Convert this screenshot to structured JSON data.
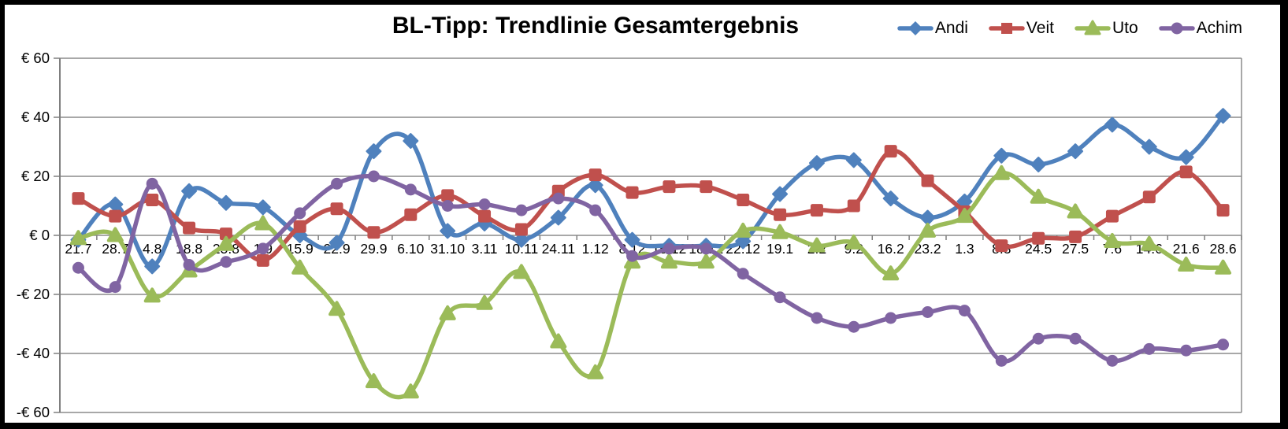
{
  "title": "BL-Tipp: Trendlinie Gesamtergebnis",
  "chart_data": {
    "type": "line",
    "smooth": true,
    "title": "BL-Tipp: Trendlinie Gesamtergebnis",
    "categories": [
      "21.7",
      "28.7",
      "4.8",
      "18.8",
      "25.8",
      "1.9",
      "15.9",
      "22.9",
      "29.9",
      "6.10",
      "31.10",
      "3.11",
      "10.11",
      "24.11",
      "1.12",
      "8.12",
      "15.12",
      "18.12",
      "22.12",
      "19.1",
      "2.2",
      "9.2",
      "16.2",
      "23.2",
      "1.3",
      "8.3",
      "24.5",
      "27.5",
      "7.6",
      "14.6",
      "21.6",
      "28.6"
    ],
    "series": [
      {
        "name": "Andi",
        "color": "#4F81BD",
        "marker": "diamond",
        "values": [
          -1.5,
          10.5,
          -10.5,
          15,
          11,
          9.5,
          0,
          -2.5,
          28.5,
          32,
          1.5,
          4,
          -1.5,
          6,
          17,
          -1.5,
          -3.5,
          -3.5,
          -2,
          14,
          24.5,
          25.5,
          12.5,
          6,
          11.5,
          27,
          24,
          28.5,
          37.5,
          30,
          26.5,
          40.5
        ]
      },
      {
        "name": "Veit",
        "color": "#C0504D",
        "marker": "square",
        "values": [
          12.5,
          6.5,
          12,
          2.5,
          0.5,
          -8.5,
          3,
          9,
          1,
          7,
          13.5,
          6.5,
          2,
          15,
          20.5,
          14.5,
          16.5,
          16.5,
          12,
          7,
          8.5,
          10,
          28.5,
          18.5,
          8,
          -3.5,
          -1,
          -0.5,
          6.5,
          13,
          21.5,
          8.5
        ]
      },
      {
        "name": "Uto",
        "color": "#9BBB59",
        "marker": "triangle",
        "values": [
          -1,
          0,
          -20.5,
          -12,
          -3,
          4,
          -11,
          -25,
          -49.5,
          -53,
          -26.5,
          -23,
          -12.5,
          -36,
          -46.5,
          -9,
          -9,
          -9,
          1.5,
          1,
          -3.5,
          -2.5,
          -13,
          1.5,
          6.5,
          21,
          13,
          8,
          -2,
          -3,
          -10,
          -11
        ]
      },
      {
        "name": "Achim",
        "color": "#8064A2",
        "marker": "circle",
        "values": [
          -11,
          -17.5,
          17.5,
          -10,
          -9,
          -4.5,
          7.5,
          17.5,
          20,
          15.5,
          10,
          10.5,
          8.5,
          12.5,
          8.5,
          -7,
          -4.5,
          -4.5,
          -13,
          -21,
          -28,
          -31,
          -28,
          -26,
          -25.5,
          -42.5,
          -35,
          -35,
          -42.5,
          -38.5,
          -39,
          -37
        ]
      }
    ],
    "ylim": [
      -60,
      60
    ],
    "ytick_step": 20,
    "y_tick_labels": [
      "€ 60",
      "€ 40",
      "€ 20",
      "€ 0",
      "-€ 20",
      "-€ 40",
      "-€ 60"
    ],
    "y_tick_values": [
      60,
      40,
      20,
      0,
      -20,
      -40,
      -60
    ],
    "xlabel": "",
    "ylabel": "",
    "grid": true,
    "legend_position": "top-right"
  },
  "styles": {
    "grid_color": "#8c8c8c",
    "axis_color": "#7f7f7f",
    "text_color": "#000000",
    "background": "#ffffff",
    "frame_color": "#000000"
  }
}
